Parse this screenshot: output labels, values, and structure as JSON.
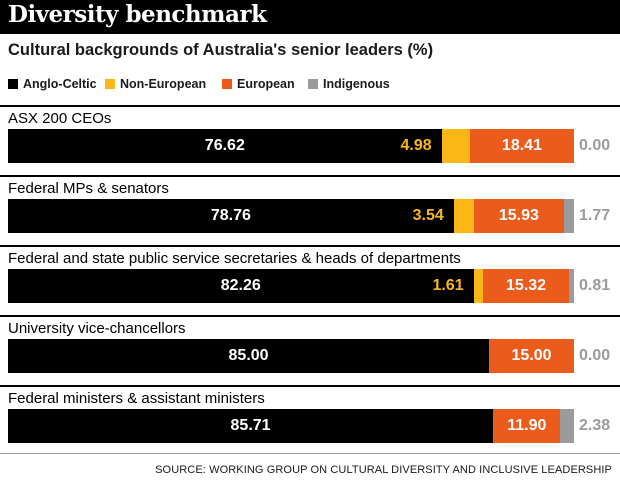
{
  "chart_data": {
    "type": "bar",
    "stacked": true,
    "orientation": "horizontal",
    "title": "Diversity benchmark",
    "subtitle": "Cultural backgrounds of Australia's senior leaders (%)",
    "categories": [
      "ASX 200 CEOs",
      "Federal MPs & senators",
      "Federal and state public service secretaries & heads of departments",
      "University vice-chancellors",
      "Federal ministers & assistant ministers"
    ],
    "series": [
      {
        "name": "Anglo-Celtic",
        "color": "#000000",
        "values": [
          76.62,
          78.76,
          82.26,
          85.0,
          85.71
        ],
        "labels": [
          "76.62",
          "78.76",
          "82.26",
          "85.00",
          "85.71"
        ]
      },
      {
        "name": "Non-European",
        "color": "#fbb715",
        "values": [
          4.98,
          3.54,
          1.61,
          0,
          0
        ],
        "labels": [
          "4.98",
          "3.54",
          "1.61",
          "",
          ""
        ]
      },
      {
        "name": "European",
        "color": "#eb5c1c",
        "values": [
          18.41,
          15.93,
          15.32,
          15.0,
          11.9
        ],
        "labels": [
          "18.41",
          "15.93",
          "15.32",
          "15.00",
          "11.90"
        ]
      },
      {
        "name": "Indigenous",
        "color": "#9b9b9b",
        "values": [
          0.0,
          1.77,
          0.81,
          0.0,
          2.38
        ],
        "labels": [
          "0.00",
          "1.77",
          "0.81",
          "0.00",
          "2.38"
        ]
      }
    ],
    "xlim": [
      0,
      100
    ],
    "legend_position": "top-left",
    "source": "SOURCE: WORKING GROUP ON CULTURAL DIVERSITY AND INCLUSIVE LEADERSHIP"
  }
}
